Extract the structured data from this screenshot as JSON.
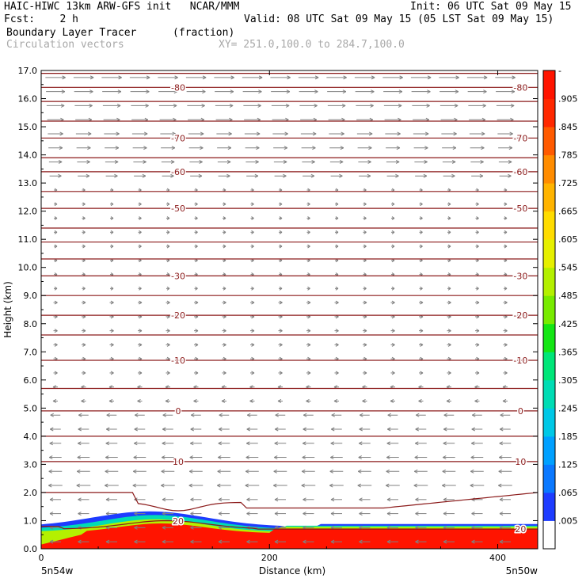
{
  "header": {
    "line1_left": "HAIC-HIWC 13km ARW-GFS init   NCAR/MMM",
    "line1_right": "Init: 06 UTC Sat 09 May 15",
    "line2_left": "Fcst:    2 h",
    "line2_right": "Valid: 08 UTC Sat 09 May 15 (05 LST Sat 09 May 15)",
    "field_name": "Boundary Layer Tracer",
    "field_units": "(fraction)",
    "vectors_label": "Circulation vectors",
    "cross_section": "XY= 251.0,100.0 to 284.7,100.0"
  },
  "colors": {
    "contour": "#8b1a1a",
    "vector": "#808080",
    "text": "#000000",
    "gray_text": "#a8a8a8"
  },
  "chart_data": {
    "type": "heatmap",
    "title": "Boundary Layer Tracer",
    "units": "(fraction)",
    "xlabel": "Distance (km)",
    "ylabel": "Height (km)",
    "xlim": [
      0,
      435
    ],
    "ylim": [
      0,
      17
    ],
    "x_ticks": [
      "0",
      "200",
      "400"
    ],
    "y_ticks": [
      "0.0",
      "1.0",
      "2.0",
      "3.0",
      "4.0",
      "5.0",
      "6.0",
      "7.0",
      "8.0",
      "9.0",
      "10.0",
      "11.0",
      "12.0",
      "13.0",
      "14.0",
      "15.0",
      "16.0",
      "17.0"
    ],
    "x_endpoints": {
      "left": "5n54w",
      "right": "5n50w"
    },
    "colorbar": {
      "labels": [
        ".005",
        ".065",
        ".125",
        ".185",
        ".245",
        ".305",
        ".365",
        ".425",
        ".485",
        ".545",
        ".605",
        ".665",
        ".725",
        ".785",
        ".845",
        ".905"
      ],
      "top_label": "-",
      "colors": [
        "#ffffff",
        "#1e3cff",
        "#0a78ff",
        "#00a0ff",
        "#00c8e6",
        "#00dcb4",
        "#00e678",
        "#14e614",
        "#78eb00",
        "#b4f000",
        "#e6f000",
        "#ffdc00",
        "#ffb400",
        "#ff8c00",
        "#ff5a00",
        "#ff2800",
        "#ff1400"
      ]
    },
    "temperature_contours": [
      {
        "label": "-80",
        "height_km": 16.4
      },
      {
        "label": "-70",
        "height_km": 14.6
      },
      {
        "label": "-60",
        "height_km": 13.4
      },
      {
        "label": "-50",
        "height_km": 12.1
      },
      {
        "label": "-30",
        "height_km": 9.7
      },
      {
        "label": "-20",
        "height_km": 8.3
      },
      {
        "label": "-10",
        "height_km": 6.7
      },
      {
        "label": "0",
        "height_km": 4.9
      },
      {
        "label": "10",
        "height_km": 3.1
      },
      {
        "label": "20",
        "height_km": 0.7
      }
    ],
    "unlabeled_contour_heights_km": [
      16.9,
      15.9,
      15.2,
      13.9,
      12.7,
      11.4,
      10.9,
      10.3,
      9.0,
      7.6,
      5.7,
      4.0,
      2.0
    ]
  }
}
